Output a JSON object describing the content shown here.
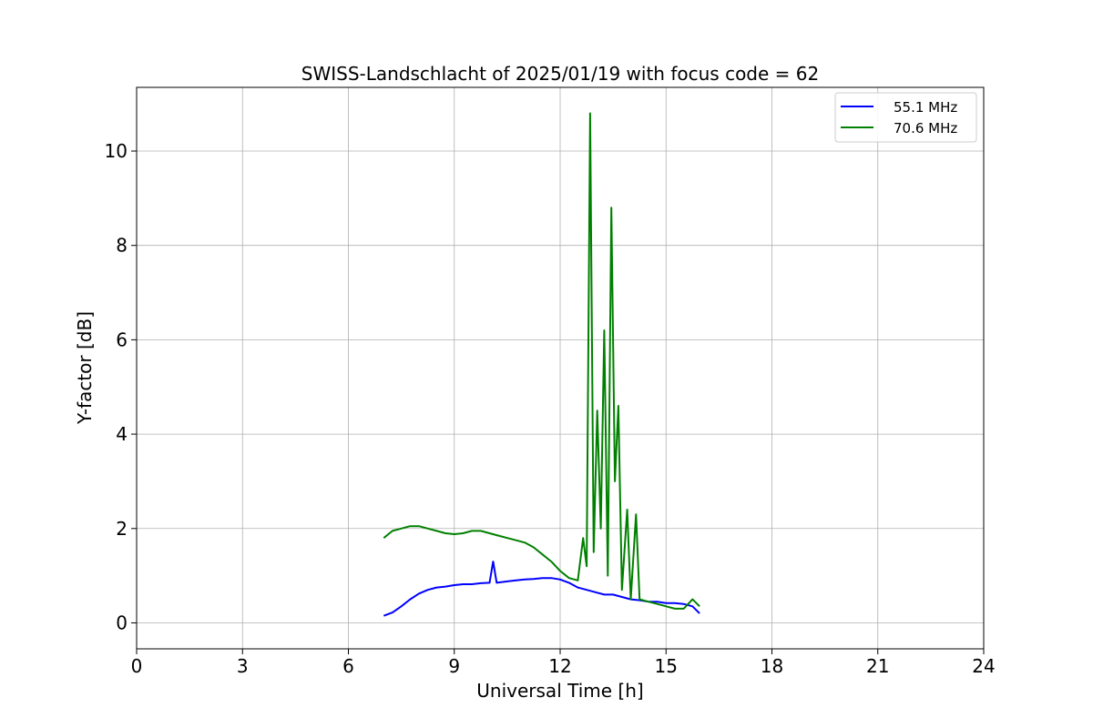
{
  "chart_data": {
    "type": "line",
    "title": "SWISS-Landschlacht of 2025/01/19 with focus code = 62",
    "xlabel": "Universal Time [h]",
    "ylabel": "Y-factor [dB]",
    "xlim": [
      0,
      24
    ],
    "ylim": [
      -0.55,
      11.35
    ],
    "xticks": [
      0,
      3,
      6,
      9,
      12,
      15,
      18,
      21,
      24
    ],
    "yticks": [
      0,
      2,
      4,
      6,
      8,
      10
    ],
    "grid": true,
    "legend_position": "top-right",
    "series": [
      {
        "name": "55.1 MHz",
        "color": "#0000ff",
        "x": [
          7.0,
          7.25,
          7.5,
          7.75,
          8.0,
          8.25,
          8.5,
          8.75,
          9.0,
          9.25,
          9.5,
          9.75,
          10.0,
          10.1,
          10.2,
          10.3,
          10.5,
          10.75,
          11.0,
          11.25,
          11.5,
          11.75,
          12.0,
          12.25,
          12.5,
          12.75,
          13.0,
          13.25,
          13.5,
          13.75,
          14.0,
          14.25,
          14.5,
          14.75,
          15.0,
          15.25,
          15.5,
          15.75,
          15.95
        ],
        "y": [
          0.15,
          0.22,
          0.35,
          0.5,
          0.62,
          0.7,
          0.75,
          0.77,
          0.8,
          0.82,
          0.82,
          0.84,
          0.85,
          1.3,
          0.85,
          0.86,
          0.88,
          0.9,
          0.92,
          0.93,
          0.95,
          0.95,
          0.92,
          0.85,
          0.75,
          0.7,
          0.65,
          0.6,
          0.6,
          0.55,
          0.5,
          0.48,
          0.45,
          0.45,
          0.42,
          0.42,
          0.4,
          0.35,
          0.2
        ]
      },
      {
        "name": "70.6 MHz",
        "color": "#008000",
        "x": [
          7.0,
          7.25,
          7.5,
          7.75,
          8.0,
          8.25,
          8.5,
          8.75,
          9.0,
          9.25,
          9.5,
          9.75,
          10.0,
          10.25,
          10.5,
          10.75,
          11.0,
          11.25,
          11.5,
          11.75,
          12.0,
          12.25,
          12.5,
          12.65,
          12.75,
          12.85,
          12.95,
          13.05,
          13.15,
          13.25,
          13.35,
          13.45,
          13.55,
          13.65,
          13.75,
          13.9,
          14.0,
          14.15,
          14.25,
          14.5,
          14.75,
          15.0,
          15.25,
          15.5,
          15.75,
          15.95
        ],
        "y": [
          1.8,
          1.95,
          2.0,
          2.05,
          2.05,
          2.0,
          1.95,
          1.9,
          1.88,
          1.9,
          1.95,
          1.95,
          1.9,
          1.85,
          1.8,
          1.75,
          1.7,
          1.6,
          1.45,
          1.3,
          1.1,
          0.95,
          0.9,
          1.8,
          1.2,
          10.8,
          1.5,
          4.5,
          2.0,
          6.2,
          1.0,
          8.8,
          3.0,
          4.6,
          0.7,
          2.4,
          0.5,
          2.3,
          0.5,
          0.45,
          0.4,
          0.35,
          0.3,
          0.3,
          0.5,
          0.35
        ]
      }
    ]
  }
}
